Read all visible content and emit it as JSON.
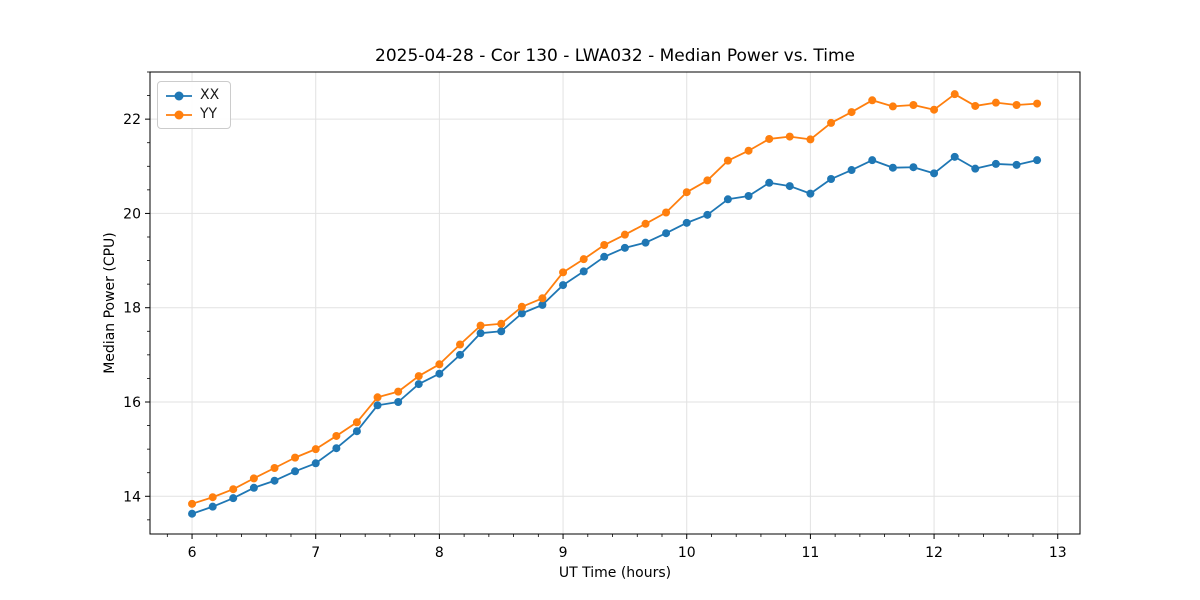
{
  "chart": {
    "title": "2025-04-28 - Cor 130 - LWA032 - Median Power vs. Time",
    "xlabel": "UT Time (hours)",
    "ylabel": "Median Power (CPU)"
  },
  "chart_data": {
    "type": "line",
    "title": "2025-04-28 - Cor 130 - LWA032 - Median Power vs. Time",
    "xlabel": "UT Time (hours)",
    "ylabel": "Median Power (CPU)",
    "xlim": [
      5.66,
      13.18
    ],
    "ylim": [
      13.2,
      23.0
    ],
    "x_ticks": [
      6,
      7,
      8,
      9,
      10,
      11,
      12,
      13
    ],
    "y_ticks": [
      14,
      16,
      18,
      20,
      22
    ],
    "x_minor_step": 0.2,
    "y_minor_step": 0.5,
    "grid": "major",
    "grid_color": "#e2e2e2",
    "legend_position": "upper-left",
    "marker": "circle",
    "x": [
      6.0,
      6.167,
      6.333,
      6.5,
      6.667,
      6.833,
      7.0,
      7.167,
      7.333,
      7.5,
      7.667,
      7.833,
      8.0,
      8.167,
      8.333,
      8.5,
      8.667,
      8.833,
      9.0,
      9.167,
      9.333,
      9.5,
      9.667,
      9.833,
      10.0,
      10.167,
      10.333,
      10.5,
      10.667,
      10.833,
      11.0,
      11.167,
      11.333,
      11.5,
      11.667,
      11.833,
      12.0,
      12.167,
      12.333,
      12.5,
      12.667,
      12.833
    ],
    "series": [
      {
        "name": "XX",
        "color": "#1f77b4",
        "values": [
          13.63,
          13.78,
          13.96,
          14.18,
          14.33,
          14.53,
          14.7,
          15.02,
          15.38,
          15.93,
          16.0,
          16.38,
          16.6,
          17.0,
          17.46,
          17.5,
          17.88,
          18.06,
          18.48,
          18.77,
          19.08,
          19.27,
          19.38,
          19.58,
          19.8,
          19.97,
          20.3,
          20.37,
          20.65,
          20.58,
          20.42,
          20.73,
          20.92,
          21.13,
          20.97,
          20.98,
          20.85,
          21.2,
          20.95,
          21.05,
          21.03,
          21.13
        ]
      },
      {
        "name": "YY",
        "color": "#ff7f0e",
        "values": [
          13.84,
          13.98,
          14.15,
          14.38,
          14.6,
          14.82,
          15.0,
          15.28,
          15.57,
          16.1,
          16.22,
          16.55,
          16.8,
          17.22,
          17.62,
          17.66,
          18.02,
          18.2,
          18.75,
          19.03,
          19.33,
          19.55,
          19.78,
          20.02,
          20.45,
          20.7,
          21.12,
          21.33,
          21.58,
          21.63,
          21.57,
          21.92,
          22.15,
          22.4,
          22.27,
          22.3,
          22.2,
          22.53,
          22.28,
          22.35,
          22.3,
          22.33
        ]
      }
    ]
  }
}
